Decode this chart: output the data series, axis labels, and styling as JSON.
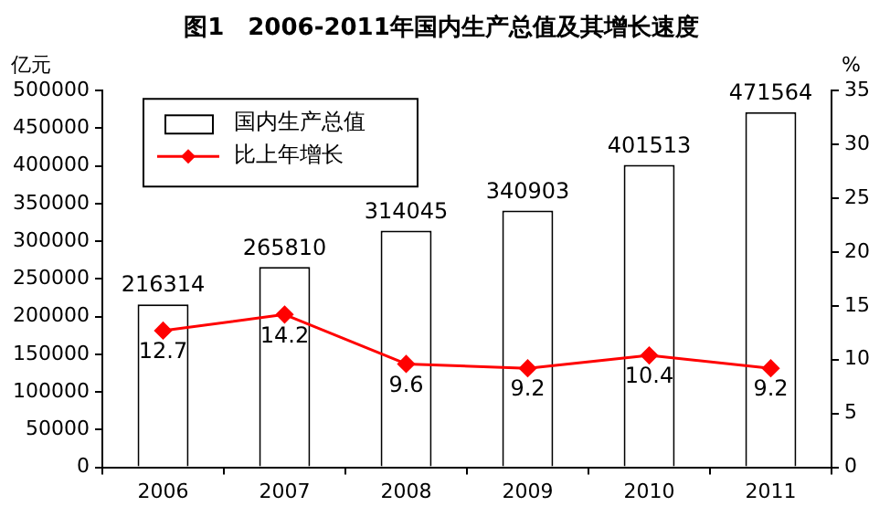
{
  "chart_data": {
    "type": "bar",
    "title": "图1　2006-2011年国内生产总值及其增长速度",
    "ylabel": "亿元",
    "y2label": "%",
    "categories": [
      "2006",
      "2007",
      "2008",
      "2009",
      "2010",
      "2011"
    ],
    "series": [
      {
        "name": "国内生产总值",
        "color": "#ffffff",
        "values": [
          216314,
          265810,
          314045,
          340903,
          401513,
          471564
        ]
      },
      {
        "name": "比上年增长",
        "type": "line",
        "axis": "y2",
        "color": "#ff0000",
        "values": [
          12.7,
          14.2,
          9.6,
          9.2,
          10.4,
          9.2
        ]
      }
    ],
    "ylim": [
      0,
      500000
    ],
    "yticks": [
      0,
      50000,
      100000,
      150000,
      200000,
      250000,
      300000,
      350000,
      400000,
      450000,
      500000
    ],
    "y2lim": [
      0,
      35
    ],
    "y2ticks": [
      0,
      5,
      10,
      15,
      20,
      25,
      30,
      35
    ],
    "grid": false,
    "legend": "top left",
    "marker": "diamond",
    "line_style": "solid",
    "data_labels": true
  }
}
